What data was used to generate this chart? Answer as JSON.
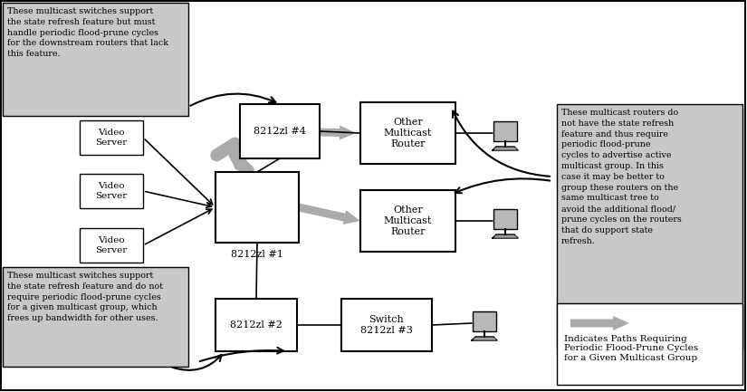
{
  "bg_color": "#ffffff",
  "gray_box_color": "#c8c8c8",
  "gray_arrow_color": "#999999",
  "note_top_left": "These multicast switches support\nthe state refresh feature but must\nhandle periodic flood-prune cycles\nfor the downstream routers that lack\nthis feature.",
  "note_bottom_left": "These multicast switches support\nthe state refresh feature and do not\nrequire periodic flood-prune cycles\nfor a given multicast group, which\nfrees up bandwidth for other uses.",
  "note_right": "These multicast routers do\nnot have the state refresh\nfeature and thus require\nperiodic flood-prune\ncycles to advertise active\nmulticast group. In this\ncase it may be better to\ngroup these routers on the\nsame multicast tree to\navoid the additional flood/\nprune cycles on the routers\nthat do support state\nrefresh.",
  "legend_text": "Indicates Paths Requiring\nPeriodic Flood-Prune Cycles\nfor a Given Multicast Group",
  "label_sw1": "8212zl #1",
  "label_sw2": "8212zl #2",
  "label_sw3": "Switch\n8212zl #3",
  "label_sw4": "8212zl #4",
  "label_r1": "Other\nMulticast\nRouter",
  "label_r2": "Other\nMulticast\nRouter",
  "label_vs": "Video\nServer"
}
